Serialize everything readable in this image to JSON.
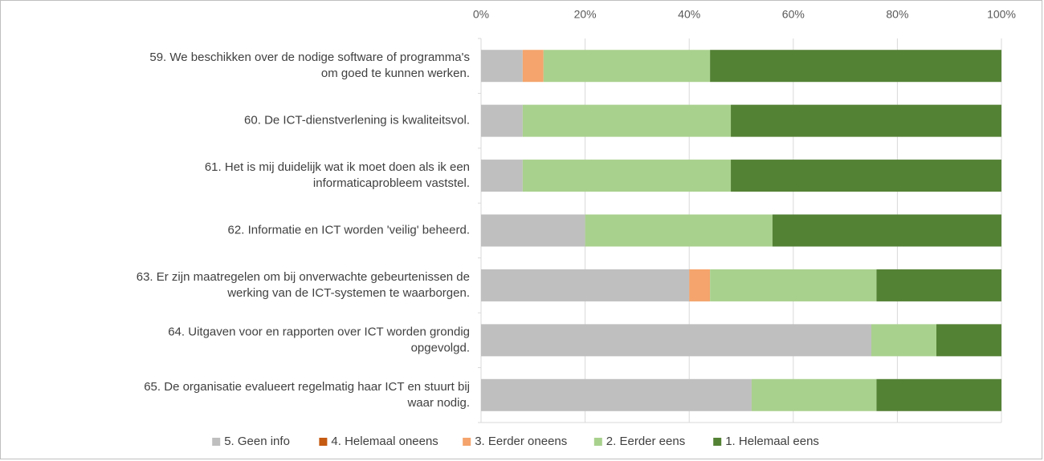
{
  "chart_data": {
    "type": "stacked-barh",
    "categories": [
      [
        "59. We beschikken over de nodige software of programma's",
        "om goed te kunnen werken."
      ],
      [
        "60. De ICT-dienstverlening is kwaliteitsvol."
      ],
      [
        "61. Het is mij duidelijk wat ik moet doen als ik een",
        "informaticaprobleem vaststel."
      ],
      [
        "62. Informatie en ICT worden 'veilig' beheerd."
      ],
      [
        "63. Er zijn maatregelen om bij onverwachte gebeurtenissen de",
        "werking van de ICT-systemen te waarborgen."
      ],
      [
        "64. Uitgaven voor en rapporten over ICT worden grondig",
        "opgevolgd."
      ],
      [
        "65. De organisatie evalueert regelmatig haar ICT en stuurt bij",
        "waar nodig."
      ]
    ],
    "series": [
      {
        "name": "5. Geen info",
        "color": "#bfbfbf",
        "values": [
          8,
          8,
          8,
          20,
          40,
          75,
          52
        ]
      },
      {
        "name": "4. Helemaal oneens",
        "color": "#c55a11",
        "values": [
          0,
          0,
          0,
          0,
          0,
          0,
          0
        ]
      },
      {
        "name": "3. Eerder oneens",
        "color": "#f4a46c",
        "values": [
          4,
          0,
          0,
          0,
          4,
          0,
          0
        ]
      },
      {
        "name": "2. Eerder eens",
        "color": "#a9d18e",
        "values": [
          32,
          40,
          40,
          36,
          32,
          12.5,
          24
        ]
      },
      {
        "name": "1. Helemaal eens",
        "color": "#548235",
        "values": [
          56,
          52,
          52,
          44,
          24,
          12.5,
          24
        ]
      }
    ],
    "xlim": [
      0,
      100
    ],
    "xticks": [
      {
        "value": 0,
        "label": "0%"
      },
      {
        "value": 20,
        "label": "20%"
      },
      {
        "value": 40,
        "label": "40%"
      },
      {
        "value": 60,
        "label": "60%"
      },
      {
        "value": 80,
        "label": "80%"
      },
      {
        "value": 100,
        "label": "100%"
      }
    ],
    "grid": true,
    "legend": "bottom"
  }
}
